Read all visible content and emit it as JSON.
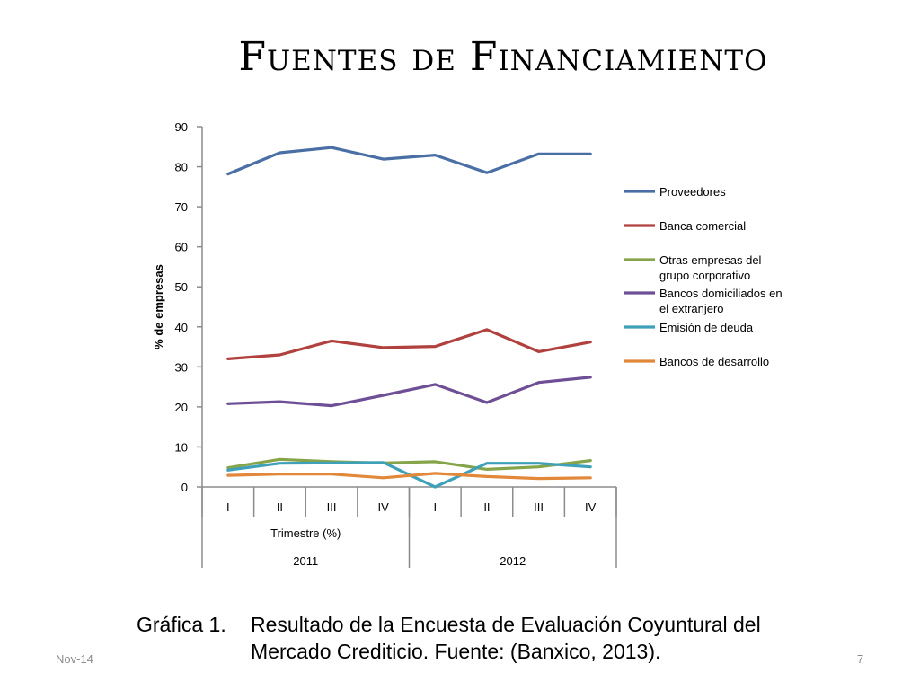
{
  "slide": {
    "title": "Fuentes de Financiamiento",
    "caption_label": "Gráfica 1.",
    "caption_line1": "Resultado de la Encuesta de Evaluación Coyuntural del",
    "caption_line2": "Mercado Crediticio. Fuente: (Banxico, 2013).",
    "footer_date": "Nov-14",
    "page_number": "7"
  },
  "chart_data": {
    "type": "line",
    "ylabel": "% de empresas",
    "xlabel": "Trimestre (%)",
    "ylim": [
      0,
      90
    ],
    "yticks": [
      0,
      10,
      20,
      30,
      40,
      50,
      60,
      70,
      80,
      90
    ],
    "categories": [
      "I",
      "II",
      "III",
      "IV",
      "I",
      "II",
      "III",
      "IV"
    ],
    "groups": [
      {
        "label": "2011",
        "span": 4
      },
      {
        "label": "2012",
        "span": 4
      }
    ],
    "grid": false,
    "legend_position": "right",
    "series": [
      {
        "name": "Proveedores",
        "color": "#4a6fa5",
        "values": [
          78.2,
          83.5,
          84.8,
          81.9,
          82.9,
          78.5,
          83.2,
          83.2
        ]
      },
      {
        "name": "Banca comercial",
        "color": "#b0413e",
        "values": [
          32.0,
          33.0,
          36.5,
          34.8,
          35.1,
          39.3,
          33.8,
          36.2
        ]
      },
      {
        "name": "Otras empresas del grupo corporativo",
        "color": "#86a54a",
        "values": [
          4.8,
          6.9,
          6.3,
          6.0,
          6.3,
          4.4,
          5.0,
          6.6
        ]
      },
      {
        "name": "Bancos domiciliados en el extranjero",
        "color": "#6e4f96",
        "values": [
          20.8,
          21.3,
          20.3,
          22.9,
          25.6,
          21.1,
          26.1,
          27.4
        ]
      },
      {
        "name": "Emisión de deuda",
        "color": "#3fa0ba",
        "values": [
          4.2,
          5.9,
          6.0,
          6.1,
          0.0,
          5.9,
          5.9,
          5.0
        ]
      },
      {
        "name": "Bancos de desarrollo",
        "color": "#e2883a",
        "values": [
          2.9,
          3.2,
          3.2,
          2.3,
          3.4,
          2.6,
          2.1,
          2.3
        ]
      }
    ]
  }
}
